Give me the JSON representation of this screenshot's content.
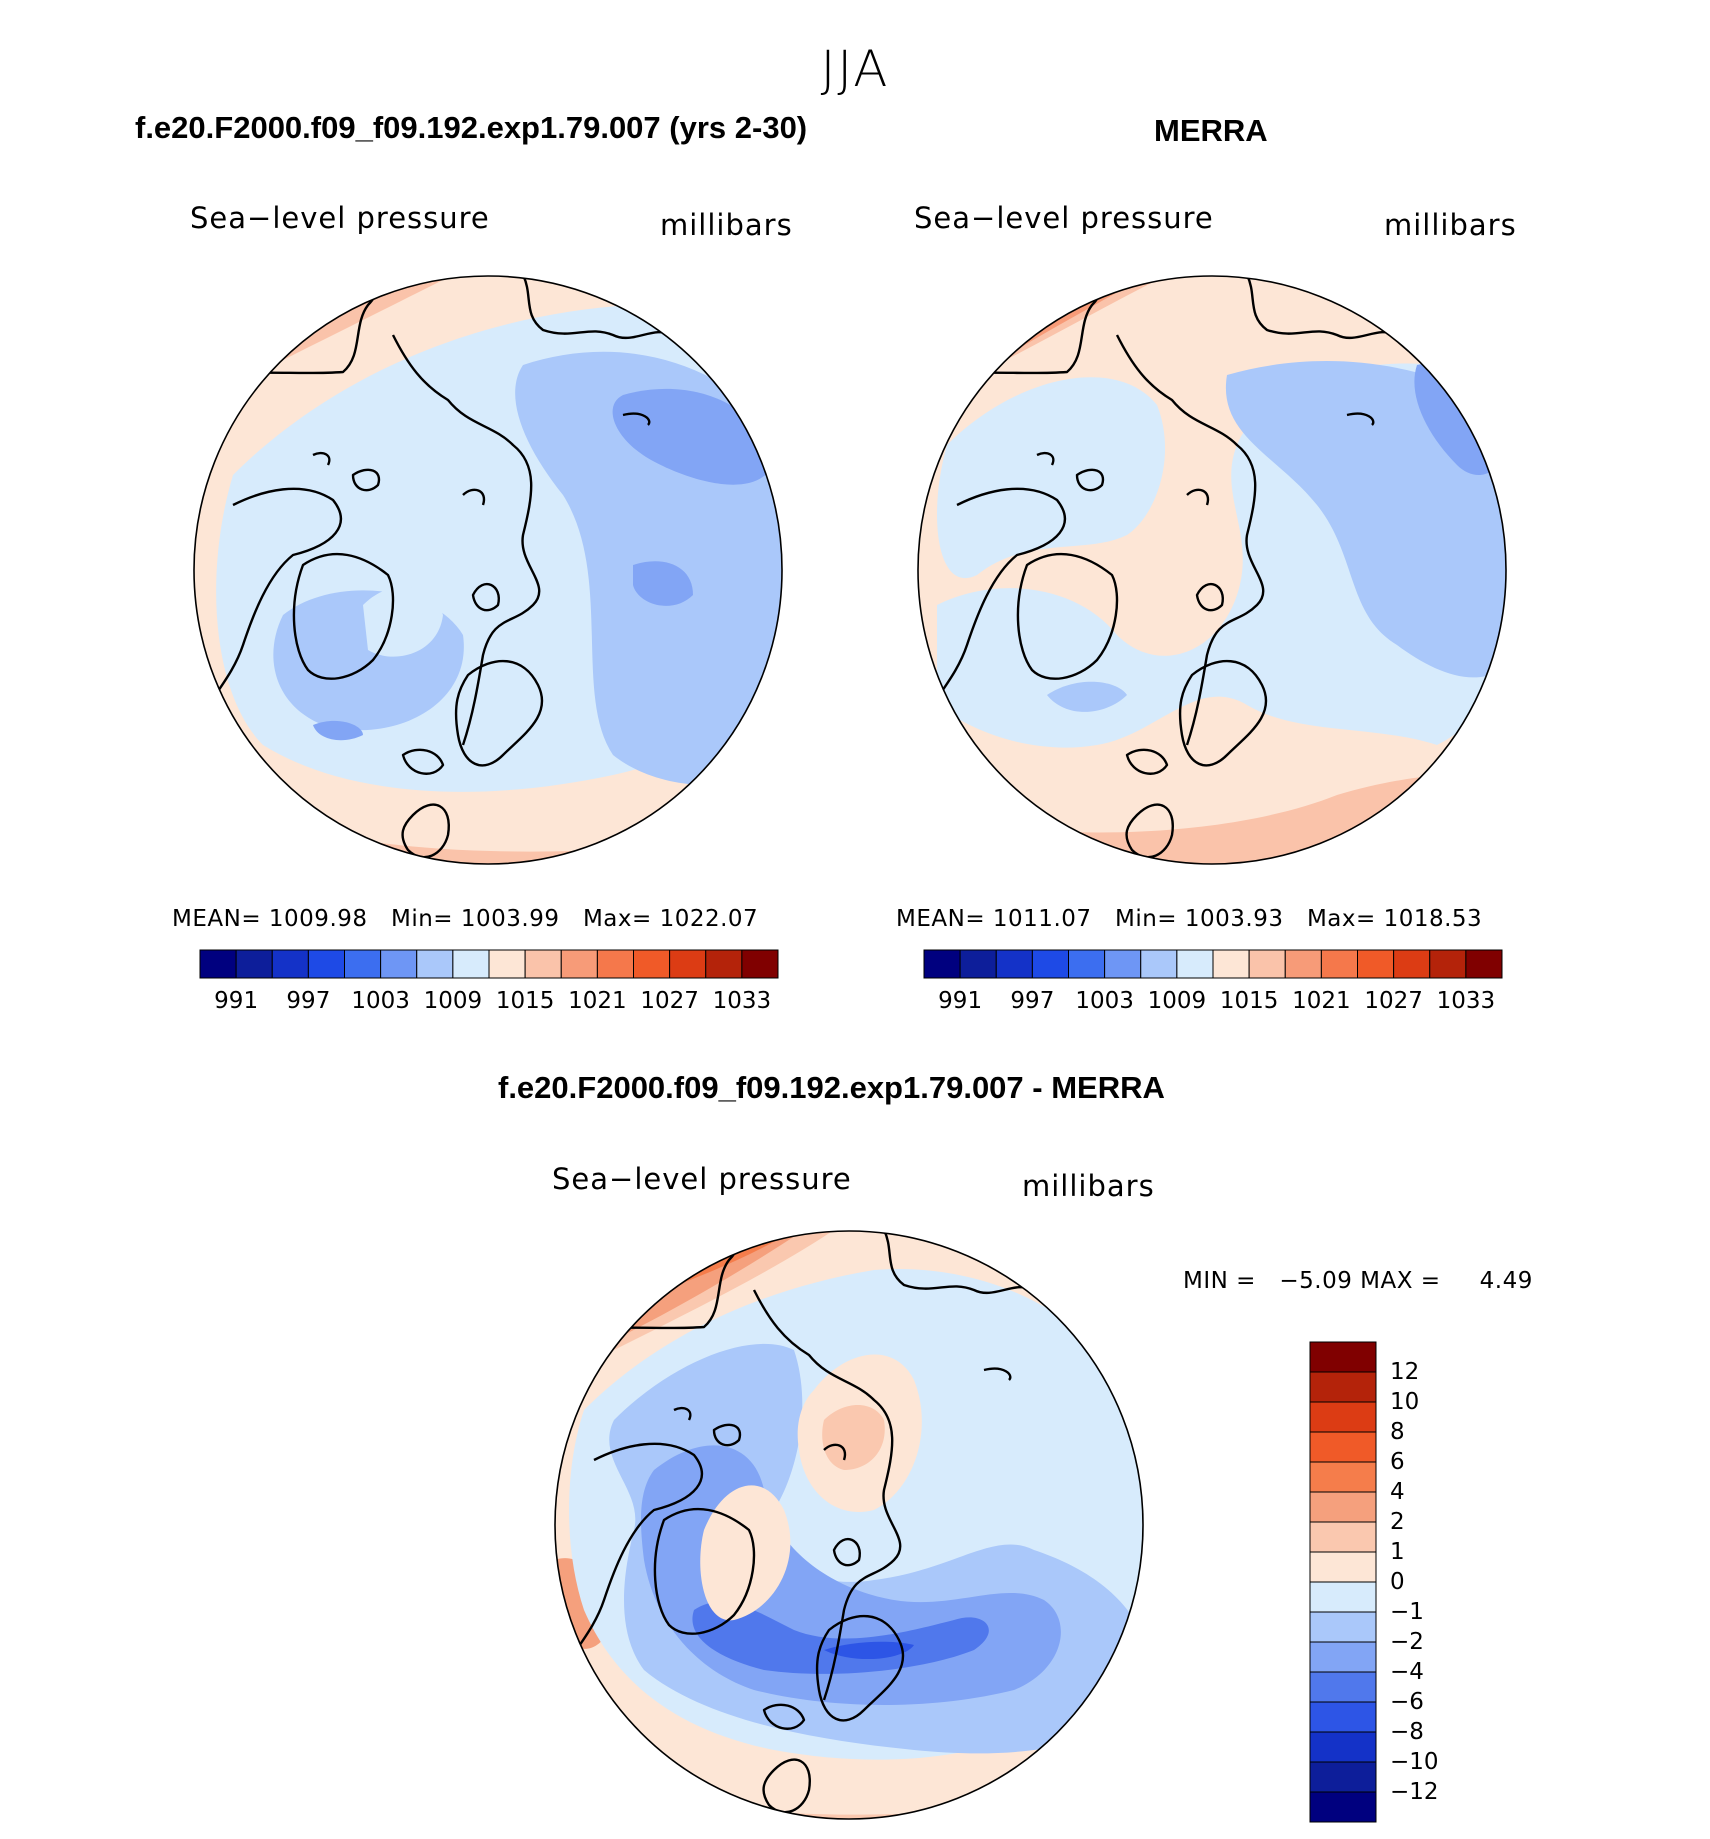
{
  "page": {
    "season": "JJA"
  },
  "panels": [
    {
      "id": "model",
      "title": "f.e20.F2000.f09_f09.192.exp1.79.007 (yrs 2-30)",
      "variable": "Sea−level pressure",
      "units": "millibars",
      "stats": {
        "mean_label": "MEAN=",
        "mean": "1009.98",
        "min_label": "Min=",
        "min": "1003.99",
        "max_label": "Max=",
        "max": "1022.07"
      }
    },
    {
      "id": "merra",
      "title": "MERRA",
      "variable": "Sea−level pressure",
      "units": "millibars",
      "stats": {
        "mean_label": "MEAN=",
        "mean": "1011.07",
        "min_label": "Min=",
        "min": "1003.93",
        "max_label": "Max=",
        "max": "1018.53"
      }
    },
    {
      "id": "diff",
      "title": "f.e20.F2000.f09_f09.192.exp1.79.007 - MERRA",
      "variable": "Sea−level pressure",
      "units": "millibars",
      "stats": {
        "min_label": "MIN =",
        "min": "−5.09",
        "max_label": "MAX =",
        "max": "4.49"
      }
    }
  ],
  "colorbars": {
    "absolute": {
      "colors": [
        "#00007f",
        "#0d1e9a",
        "#1432c8",
        "#1e4ae6",
        "#3c6ef0",
        "#6e96f5",
        "#aac8fa",
        "#d7ebfc",
        "#fde6d6",
        "#fac3aa",
        "#f79b78",
        "#f5784b",
        "#f05a28",
        "#dc3c14",
        "#b4230a",
        "#800000"
      ],
      "tick_labels": [
        "991",
        "997",
        "1003",
        "1009",
        "1015",
        "1021",
        "1027",
        "1033"
      ]
    },
    "difference": {
      "colors": [
        "#800000",
        "#b4230a",
        "#dc3c14",
        "#f05a28",
        "#f57d4b",
        "#f5a07d",
        "#fac8af",
        "#fde6d6",
        "#d7ebfc",
        "#aac8fa",
        "#82a5f5",
        "#5078ec",
        "#2d55e6",
        "#1432c8",
        "#0d1e9a",
        "#00007f"
      ],
      "tick_labels": [
        "12",
        "10",
        "8",
        "6",
        "4",
        "2",
        "1",
        "0",
        "−1",
        "−2",
        "−4",
        "−6",
        "−8",
        "−10",
        "−12"
      ]
    }
  },
  "chart_data": [
    {
      "type": "heatmap",
      "title": "f.e20.F2000.f09_f09.192.exp1.79.007 (yrs 2-30)",
      "variable": "Sea-level pressure",
      "units": "millibars",
      "projection": "north polar stereographic",
      "mean": 1009.98,
      "min": 1003.99,
      "max": 1022.07,
      "contour_levels": [
        991,
        994,
        997,
        1000,
        1003,
        1006,
        1009,
        1012,
        1015,
        1018,
        1021,
        1024,
        1027,
        1030,
        1033
      ]
    },
    {
      "type": "heatmap",
      "title": "MERRA",
      "variable": "Sea-level pressure",
      "units": "millibars",
      "projection": "north polar stereographic",
      "mean": 1011.07,
      "min": 1003.93,
      "max": 1018.53,
      "contour_levels": [
        991,
        994,
        997,
        1000,
        1003,
        1006,
        1009,
        1012,
        1015,
        1018,
        1021,
        1024,
        1027,
        1030,
        1033
      ]
    },
    {
      "type": "heatmap",
      "title": "f.e20.F2000.f09_f09.192.exp1.79.007 - MERRA",
      "variable": "Sea-level pressure",
      "units": "millibars",
      "projection": "north polar stereographic",
      "min": -5.09,
      "max": 4.49,
      "contour_levels": [
        -12,
        -10,
        -8,
        -6,
        -4,
        -2,
        -1,
        0,
        1,
        2,
        4,
        6,
        8,
        10,
        12
      ]
    }
  ]
}
